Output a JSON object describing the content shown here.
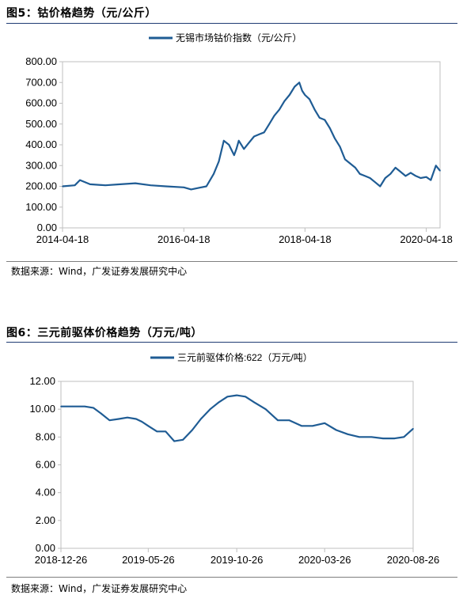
{
  "figures": [
    {
      "title": "图5：钴价格趋势（元/公斤）",
      "source": "数据来源：Wind，广发证券发展研究中心"
    },
    {
      "title": "图6：三元前驱体价格趋势（万元/吨）",
      "source": "数据来源：Wind，广发证券发展研究中心"
    }
  ],
  "colors": {
    "line": "#1f5c94",
    "rule": "#1f3b73",
    "axis": "#bfbfbf"
  },
  "chart_data": [
    {
      "type": "line",
      "legend_position": "top",
      "grid": false,
      "x_tick_labels": [
        "2014-04-18",
        "2016-04-18",
        "2018-04-18",
        "2020-04-18"
      ],
      "y_tick_labels": [
        "0.00",
        "100.00",
        "200.00",
        "300.00",
        "400.00",
        "500.00",
        "600.00",
        "700.00",
        "800.00"
      ],
      "ylim": [
        0,
        800
      ],
      "xlim": [
        "2014-04-18",
        "2020-07-10"
      ],
      "series": [
        {
          "name": "无锡市场钴价指数（元/公斤）",
          "x": [
            "2014-04-18",
            "2014-07-01",
            "2014-08-01",
            "2014-10-01",
            "2015-01-01",
            "2015-04-01",
            "2015-07-01",
            "2015-10-01",
            "2016-01-01",
            "2016-04-18",
            "2016-06-01",
            "2016-09-01",
            "2016-10-15",
            "2016-11-15",
            "2016-12-15",
            "2017-01-15",
            "2017-02-15",
            "2017-03-01",
            "2017-03-15",
            "2017-04-15",
            "2017-05-15",
            "2017-06-15",
            "2017-07-15",
            "2017-08-15",
            "2017-09-15",
            "2017-10-15",
            "2017-11-15",
            "2017-12-15",
            "2018-01-15",
            "2018-02-15",
            "2018-03-15",
            "2018-04-01",
            "2018-04-18",
            "2018-05-15",
            "2018-06-15",
            "2018-07-15",
            "2018-08-15",
            "2018-09-15",
            "2018-10-15",
            "2018-11-15",
            "2018-12-15",
            "2019-01-15",
            "2019-02-15",
            "2019-03-15",
            "2019-04-15",
            "2019-05-15",
            "2019-06-15",
            "2019-07-15",
            "2019-08-15",
            "2019-09-15",
            "2019-10-15",
            "2019-11-15",
            "2019-12-15",
            "2020-01-15",
            "2020-02-15",
            "2020-03-15",
            "2020-04-18",
            "2020-05-15",
            "2020-06-15",
            "2020-07-10"
          ],
          "values": [
            200,
            205,
            230,
            210,
            205,
            210,
            215,
            205,
            200,
            195,
            185,
            200,
            260,
            320,
            420,
            400,
            350,
            380,
            420,
            380,
            410,
            440,
            450,
            460,
            500,
            540,
            570,
            610,
            640,
            680,
            700,
            660,
            640,
            620,
            570,
            530,
            520,
            480,
            430,
            390,
            330,
            310,
            290,
            260,
            250,
            240,
            220,
            200,
            240,
            260,
            290,
            270,
            250,
            265,
            250,
            240,
            245,
            230,
            300,
            275
          ]
        }
      ]
    },
    {
      "type": "line",
      "legend_position": "top",
      "grid": false,
      "x_tick_labels": [
        "2018-12-26",
        "2019-05-26",
        "2019-10-26",
        "2020-03-26",
        "2020-08-26"
      ],
      "y_tick_labels": [
        "0.00",
        "2.00",
        "4.00",
        "6.00",
        "8.00",
        "10.00",
        "12.00"
      ],
      "ylim": [
        0,
        12
      ],
      "xlim": [
        "2018-12-26",
        "2020-08-26"
      ],
      "series": [
        {
          "name": "三元前驱体价格:622（万元/吨）",
          "x": [
            "2018-12-26",
            "2019-01-15",
            "2019-02-05",
            "2019-02-20",
            "2019-03-05",
            "2019-03-20",
            "2019-04-05",
            "2019-04-20",
            "2019-05-05",
            "2019-05-15",
            "2019-05-26",
            "2019-06-10",
            "2019-06-25",
            "2019-07-10",
            "2019-07-25",
            "2019-08-10",
            "2019-08-25",
            "2019-09-10",
            "2019-09-25",
            "2019-10-10",
            "2019-10-26",
            "2019-11-10",
            "2019-11-25",
            "2019-12-15",
            "2020-01-05",
            "2020-01-25",
            "2020-02-15",
            "2020-03-05",
            "2020-03-26",
            "2020-04-15",
            "2020-05-05",
            "2020-05-25",
            "2020-06-15",
            "2020-07-05",
            "2020-07-25",
            "2020-08-10",
            "2020-08-26"
          ],
          "values": [
            10.2,
            10.2,
            10.2,
            10.1,
            9.7,
            9.2,
            9.3,
            9.4,
            9.3,
            9.1,
            8.8,
            8.4,
            8.4,
            7.7,
            7.8,
            8.5,
            9.3,
            10.0,
            10.5,
            10.9,
            11.0,
            10.9,
            10.5,
            10.0,
            9.2,
            9.2,
            8.8,
            8.8,
            9.0,
            8.5,
            8.2,
            8.0,
            8.0,
            7.9,
            7.9,
            8.0,
            8.6
          ]
        }
      ]
    }
  ]
}
